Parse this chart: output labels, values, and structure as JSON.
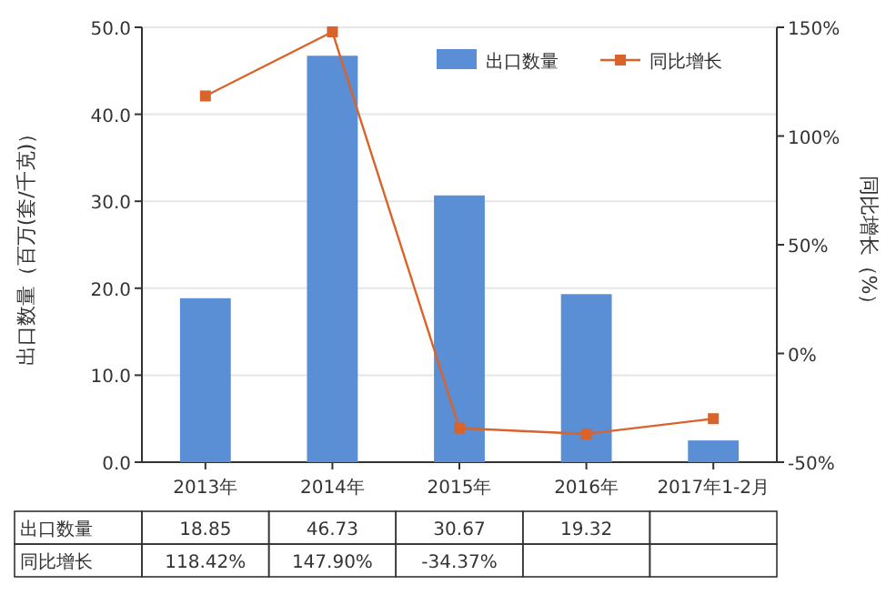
{
  "chart_data": {
    "type": "bar",
    "categories": [
      "2013年",
      "2014年",
      "2015年",
      "2016年",
      "2017年1-2月"
    ],
    "ylabel": "出口数量（百万(套/千克)）",
    "y2label": "同比增长（%）",
    "series": [
      {
        "name": "出口数量",
        "color": "#5a8fd6",
        "values": [
          18.85,
          46.73,
          30.67,
          19.32,
          2.5
        ],
        "value_labels": [
          "18.85",
          "46.73",
          "30.67",
          "19.32",
          null
        ]
      },
      {
        "name": "同比增长",
        "type": "line",
        "axis": "y2",
        "color": "#d9632b",
        "marker": "square",
        "values": [
          118.42,
          147.9,
          -34.37,
          -37,
          -30
        ],
        "value_labels": [
          "118.42%",
          "147.90%",
          "-34.37%",
          null,
          null
        ]
      }
    ],
    "ylim": [
      0,
      50
    ],
    "yticks": [
      {
        "value": 0,
        "label": "0.0"
      },
      {
        "value": 10,
        "label": "10.0"
      },
      {
        "value": 20,
        "label": "20.0"
      },
      {
        "value": 30,
        "label": "30.0"
      },
      {
        "value": 40,
        "label": "40.0"
      },
      {
        "value": 50,
        "label": "50.0"
      }
    ],
    "y2lim": [
      -50,
      150
    ],
    "y2ticks": [
      {
        "value": -50,
        "label": "-50%"
      },
      {
        "value": 0,
        "label": "0%"
      },
      {
        "value": 50,
        "label": "50%"
      },
      {
        "value": 100,
        "label": "100%"
      },
      {
        "value": 150,
        "label": "150%"
      }
    ],
    "grid": "y",
    "legend": "top right"
  }
}
